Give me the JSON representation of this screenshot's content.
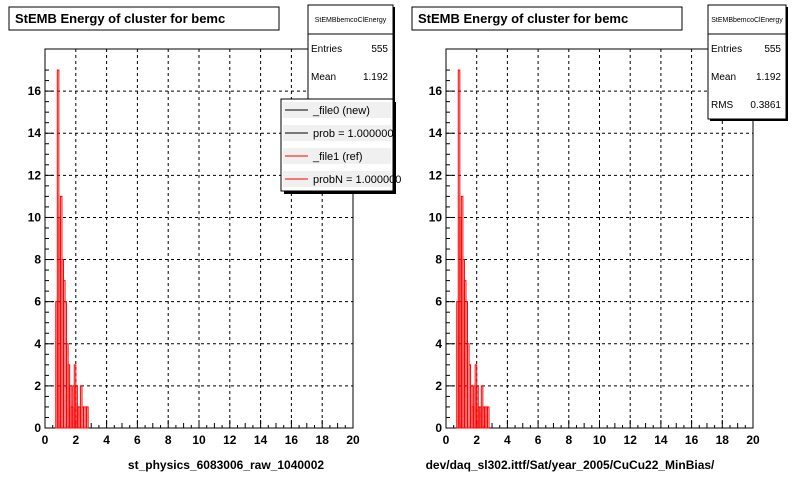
{
  "chart_data": [
    {
      "type": "bar",
      "title": "StEMB Energy of cluster for bemc",
      "xlabel": "st_physics_6083006_raw_1040002",
      "ylabel": "",
      "xlim": [
        0,
        20
      ],
      "ylim": [
        0,
        18
      ],
      "x_ticks": [
        "0",
        "2",
        "4",
        "6",
        "8",
        "10",
        "12",
        "14",
        "16",
        "18",
        "20"
      ],
      "y_ticks": [
        "0",
        "2",
        "4",
        "6",
        "8",
        "10",
        "12",
        "14",
        "16"
      ],
      "grid": true,
      "stats": {
        "name": "StEMBbemcoClEnergy",
        "rows": [
          {
            "label": "Entries",
            "value": "555"
          },
          {
            "label": "Mean",
            "value": "1.192"
          }
        ]
      },
      "legend": {
        "placement": "top-right",
        "entries": [
          {
            "label": "_file0 (new)",
            "color": "#000000"
          },
          {
            "label": "prob = 1.000000",
            "color": "#000000"
          },
          {
            "label": "_file1 (ref)",
            "color": "#ff0000"
          },
          {
            "label": "probN = 1.000000",
            "color": "#ff0000"
          }
        ]
      },
      "series": [
        {
          "color": "#ff0000",
          "x": [
            0.75,
            0.85,
            0.95,
            1.05,
            1.15,
            1.25,
            1.35,
            1.45,
            1.55,
            1.65,
            1.75,
            1.85,
            1.95,
            2.05,
            2.15,
            2.25,
            2.35,
            2.45,
            2.55,
            2.65,
            2.75
          ],
          "values": [
            6,
            17,
            10,
            11,
            8,
            7,
            6,
            4,
            3,
            2,
            1,
            2,
            3,
            2,
            1,
            1,
            2,
            1,
            1,
            1,
            1
          ]
        }
      ]
    },
    {
      "type": "bar",
      "title": "StEMB Energy of cluster for bemc",
      "xlabel": "dev/daq_sl302.ittf/Sat/year_2005/CuCu22_MinBias/",
      "ylabel": "",
      "xlim": [
        0,
        20
      ],
      "ylim": [
        0,
        18
      ],
      "x_ticks": [
        "0",
        "2",
        "4",
        "6",
        "8",
        "10",
        "12",
        "14",
        "16",
        "18",
        "20"
      ],
      "y_ticks": [
        "0",
        "2",
        "4",
        "6",
        "8",
        "10",
        "12",
        "14",
        "16"
      ],
      "grid": true,
      "stats": {
        "name": "StEMBbemcoClEnergy",
        "rows": [
          {
            "label": "Entries",
            "value": "555"
          },
          {
            "label": "Mean",
            "value": "1.192"
          },
          {
            "label": "RMS",
            "value": "0.3861"
          }
        ]
      },
      "series": [
        {
          "color": "#ff0000",
          "x": [
            0.75,
            0.85,
            0.95,
            1.05,
            1.15,
            1.25,
            1.35,
            1.45,
            1.55,
            1.65,
            1.75,
            1.85,
            1.95,
            2.05,
            2.15,
            2.25,
            2.35,
            2.45,
            2.55,
            2.65,
            2.75
          ],
          "values": [
            6,
            17,
            10,
            11,
            8,
            7,
            6,
            4,
            3,
            2,
            1,
            2,
            3,
            2,
            1,
            1,
            2,
            1,
            1,
            1,
            1
          ]
        }
      ]
    }
  ]
}
